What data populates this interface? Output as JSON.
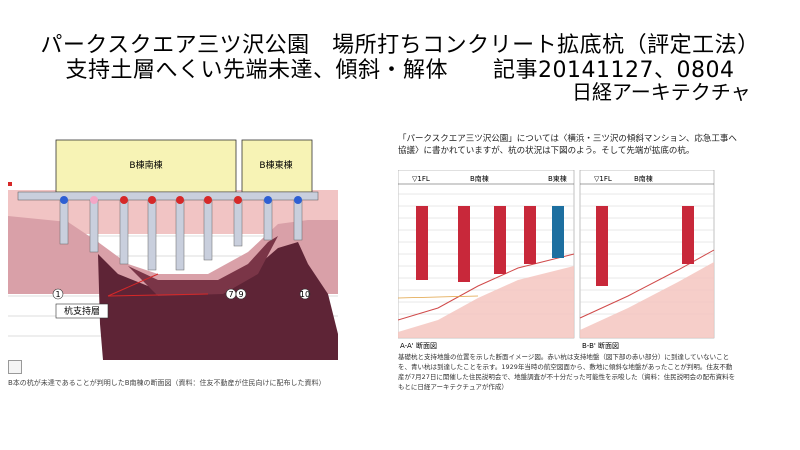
{
  "header": {
    "title_line1": "パークスクエア三ツ沢公園　場所打ちコンクリート拡底杭（評定工法）",
    "title_line2": "支持土層へくい先端未達、傾斜・解体　　記事20141127、0804",
    "source": "日経アーキテクチャ"
  },
  "left_figure": {
    "building_south": "B棟南棟",
    "building_east": "B棟東棟",
    "bearing_layer": "杭支持層",
    "grid_1": "1",
    "grid_7": "7",
    "grid_9": "9",
    "grid_10": "10",
    "caption": "B本の杭が未達であることが判明したB南棟の断面図（資料：住友不動産が住民向けに配布した資料）",
    "colors": {
      "building": "#f7f3b5",
      "pile": "#c9cfdd",
      "pile_red": "#d62828",
      "pile_blue": "#2d5fd3",
      "pile_pink": "#f4a6c6",
      "soil_top": "#f1c4c4",
      "soil_mid": "#d9a0a8",
      "soil_deep": "#5e2436"
    }
  },
  "right_figure": {
    "intro": "「パークスクエア三ツ沢公園」については〈横浜・三ツ沢の傾斜マンション、応急工事へ協議〉に書かれていますが、杭の状況は下図のよう。そして先端が拡底の杭。",
    "section_aa": {
      "floor_label": "▽1FL",
      "south_label": "B南棟",
      "east_label": "B東棟",
      "caption": "A-A' 断面図"
    },
    "section_bb": {
      "floor_label": "▽1FL",
      "south_label": "B南棟",
      "caption": "B-B' 断面図"
    },
    "caption": "基礎杭と支持地盤の位置を示した断面イメージ図。赤い杭は支持地盤（図下部の赤い部分）に到達していないことを、青い杭は到達したことを示す。1929年当時の航空図面から、敷地に傾斜な地盤があったことが判明。住友不動産が7月27日に開催した住民説明会で、地盤調査が不十分だった可能性を示唆した（資料：住民説明会の配布資料をもとに日経アーキテクチュアが作成）",
    "colors": {
      "pile_red": "#c8283a",
      "pile_blue": "#1d6fa0",
      "soil_band": "#f4c6c0",
      "soil_line": "#d04a4a"
    }
  }
}
